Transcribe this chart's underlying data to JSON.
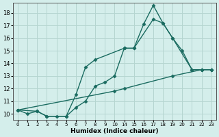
{
  "title": "",
  "xlabel": "Humidex (Indice chaleur)",
  "ylabel": "",
  "background_color": "#d4eeeb",
  "grid_color": "#b5d5d0",
  "line_color": "#1a6b60",
  "series": [
    {
      "x": [
        0,
        1,
        2,
        3,
        4,
        5,
        6,
        7,
        8,
        9,
        10,
        14,
        15,
        16,
        17,
        18,
        19,
        20,
        21,
        22,
        23
      ],
      "y": [
        10.3,
        10.0,
        10.2,
        9.8,
        9.8,
        9.8,
        10.5,
        11.0,
        12.2,
        12.5,
        13.0,
        15.2,
        15.2,
        17.1,
        18.6,
        17.2,
        16.0,
        15.0,
        13.5,
        13.5,
        13.5
      ]
    },
    {
      "x": [
        0,
        2,
        3,
        5,
        6,
        7,
        8,
        14,
        15,
        17,
        18,
        19,
        21,
        22,
        23
      ],
      "y": [
        10.3,
        10.2,
        9.8,
        9.8,
        11.5,
        13.7,
        14.3,
        15.2,
        15.2,
        17.5,
        17.2,
        16.0,
        13.5,
        13.5,
        13.5
      ]
    },
    {
      "x": [
        0,
        10,
        14,
        19,
        22,
        23
      ],
      "y": [
        10.3,
        11.8,
        12.0,
        13.0,
        13.5,
        13.5
      ]
    }
  ],
  "tick_positions": [
    0,
    1,
    2,
    3,
    4,
    5,
    6,
    7,
    8,
    9,
    10,
    14,
    15,
    16,
    17,
    18,
    19,
    20,
    21,
    22,
    23
  ],
  "tick_labels": [
    "0",
    "1",
    "2",
    "3",
    "4",
    "5",
    "6",
    "7",
    "8",
    "9",
    "10",
    "14",
    "15",
    "16",
    "17",
    "18",
    "19",
    "20",
    "21",
    "22",
    "23"
  ],
  "yticks": [
    10,
    11,
    12,
    13,
    14,
    15,
    16,
    17,
    18
  ],
  "ylim": [
    9.5,
    18.8
  ],
  "marker": "D",
  "markersize": 2.5,
  "linewidth": 1.0
}
